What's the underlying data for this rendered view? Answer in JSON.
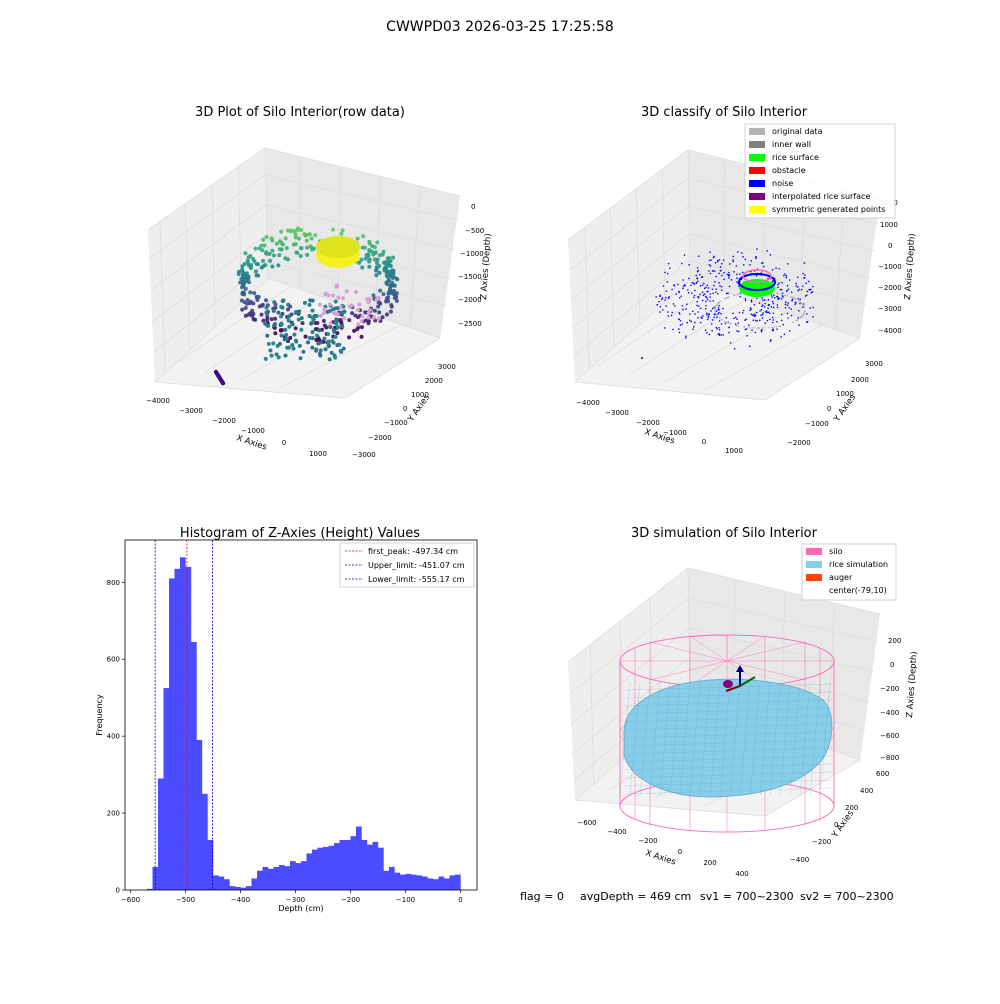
{
  "figure": {
    "suptitle": "CWWPD03 2026-03-25 17:25:58",
    "footer": {
      "flag": "flag = 0",
      "avg": "avgDepth = 469 cm",
      "sv1": "sv1 = 700~2300",
      "sv2": "sv2 = 700~2300"
    }
  },
  "colors": {
    "hist_bar": "#4b4bff",
    "peak_line": "#ff0000",
    "limit_line": "#0000cc",
    "original": "#b3b3b3",
    "inner_wall": "#808080",
    "rice_surface": "#00ff00",
    "obstacle": "#ff0000",
    "noise": "#0000ff",
    "interpolated": "#800080",
    "symmetric": "#ffff00",
    "silo": "#ff69b4",
    "rice_sim": "#87ceeb",
    "auger": "#ff4500"
  },
  "chart_data": [
    {
      "type": "scatter",
      "title": "3D Plot of Silo Interior(row data)",
      "xlabel": "X Axies",
      "ylabel": "Y Axies",
      "zlabel": "Z Axies (Depth)",
      "xticks": [
        "−4000",
        "−3000",
        "−2000",
        "−1000",
        "0",
        "1000"
      ],
      "yticks": [
        "3000",
        "2000",
        "1000",
        "0",
        "−1000",
        "−2000",
        "−3000"
      ],
      "zticks": [
        "0",
        "−500",
        "−1000",
        "−1500",
        "−2000",
        "−2500"
      ]
    },
    {
      "type": "scatter",
      "title": "3D classify of Silo Interior",
      "xlabel": "X Axies",
      "ylabel": "Y Axies",
      "zlabel": "Z Axies (Depth)",
      "xticks": [
        "−4000",
        "−3000",
        "−2000",
        "−1000",
        "0",
        "1000"
      ],
      "yticks": [
        "3000",
        "2000",
        "1000",
        "0",
        "−1000",
        "−2000"
      ],
      "zticks": [
        "2000",
        "1000",
        "0",
        "−1000",
        "−2000",
        "−3000",
        "−4000"
      ],
      "legend": [
        "original data",
        "inner wall",
        "rice surface",
        "obstacle",
        "noise",
        "interpolated rice surface",
        "symmetric generated points"
      ]
    },
    {
      "type": "bar",
      "title": "Histogram of Z-Axies (Height) Values",
      "xlabel": "Depth (cm)",
      "ylabel": "Frequency",
      "xlim": [
        -610,
        30
      ],
      "ylim": [
        0,
        910
      ],
      "xticks": [
        "−600",
        "−500",
        "−400",
        "−300",
        "−200",
        "−100",
        "0"
      ],
      "yticks": [
        "0",
        "200",
        "400",
        "600",
        "800"
      ],
      "bin_width": 10,
      "bin_starts": [
        -570,
        -560,
        -550,
        -540,
        -530,
        -520,
        -510,
        -500,
        -490,
        -480,
        -470,
        -460,
        -450,
        -440,
        -430,
        -420,
        -410,
        -400,
        -390,
        -380,
        -370,
        -360,
        -350,
        -340,
        -330,
        -320,
        -310,
        -300,
        -290,
        -280,
        -270,
        -260,
        -250,
        -240,
        -230,
        -220,
        -210,
        -200,
        -190,
        -180,
        -170,
        -160,
        -150,
        -140,
        -130,
        -120,
        -110,
        -100,
        -90,
        -80,
        -70,
        -60,
        -50,
        -40,
        -30,
        -20,
        -10
      ],
      "values": [
        3,
        60,
        290,
        525,
        810,
        835,
        865,
        840,
        645,
        390,
        250,
        130,
        38,
        35,
        28,
        10,
        8,
        6,
        10,
        30,
        50,
        60,
        55,
        60,
        65,
        62,
        75,
        70,
        75,
        95,
        105,
        110,
        112,
        115,
        122,
        130,
        130,
        140,
        165,
        130,
        118,
        125,
        110,
        50,
        60,
        45,
        40,
        42,
        40,
        38,
        35,
        30,
        28,
        35,
        30,
        38,
        40
      ],
      "lines": [
        {
          "label": "first_peak: -497.34 cm",
          "x": -497.34,
          "style": "peak"
        },
        {
          "label": "Upper_limit: -451.07 cm",
          "x": -451.07,
          "style": "limit"
        },
        {
          "label": "Lower_limit: -555.17 cm",
          "x": -555.17,
          "style": "limit"
        }
      ]
    },
    {
      "type": "scatter",
      "title": "3D simulation of Silo Interior",
      "xlabel": "X Axies",
      "ylabel": "Y Axies",
      "zlabel": "Z Axies (Depth)",
      "xticks": [
        "−600",
        "−400",
        "−200",
        "0",
        "200",
        "400"
      ],
      "yticks": [
        "600",
        "400",
        "200",
        "0",
        "−200",
        "−400"
      ],
      "zticks": [
        "200",
        "0",
        "−200",
        "−400",
        "−600",
        "−800"
      ],
      "legend": [
        "silo",
        "rice simulation",
        "auger",
        "center(-79,10)"
      ]
    }
  ]
}
